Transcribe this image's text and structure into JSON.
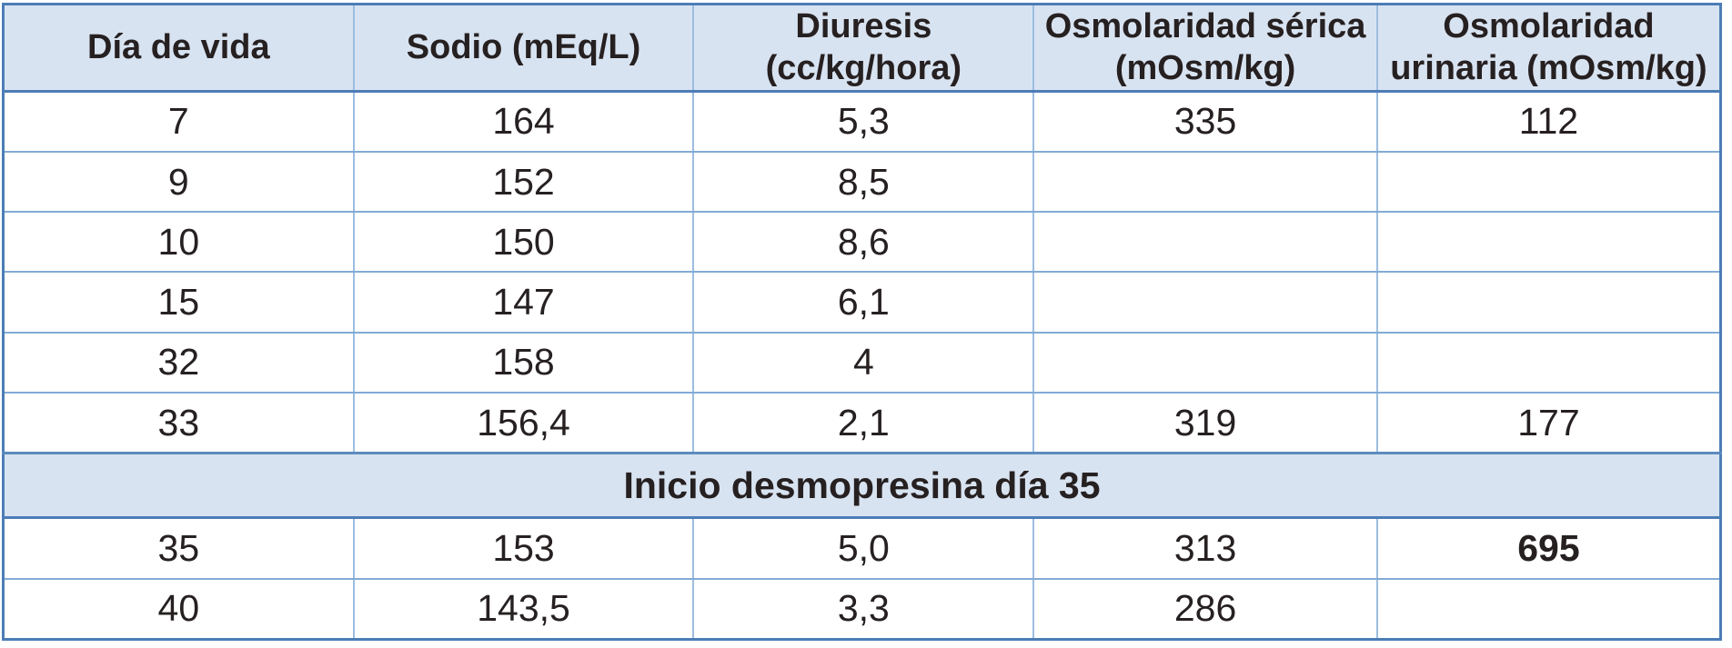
{
  "table": {
    "columns": [
      {
        "label": "Día de vida"
      },
      {
        "label": "Sodio (mEq/L)"
      },
      {
        "label": "Diuresis (cc/kg/hora)"
      },
      {
        "label": "Osmolaridad sérica (mOsm/kg)"
      },
      {
        "label": "Osmolaridad urinaria (mOsm/kg)"
      }
    ],
    "rows": [
      {
        "cells": [
          "7",
          "164",
          "5,3",
          "335",
          "112"
        ]
      },
      {
        "cells": [
          "9",
          "152",
          "8,5",
          "",
          ""
        ]
      },
      {
        "cells": [
          "10",
          "150",
          "8,6",
          "",
          ""
        ]
      },
      {
        "cells": [
          "15",
          "147",
          "6,1",
          "",
          ""
        ]
      },
      {
        "cells": [
          "32",
          "158",
          "4",
          "",
          ""
        ]
      },
      {
        "cells": [
          "33",
          "156,4",
          "2,1",
          "319",
          "177"
        ]
      }
    ],
    "section_divider": {
      "label": "Inicio desmopresina día 35"
    },
    "rows_after_divider": [
      {
        "cells": [
          "35",
          "153",
          "5,0",
          "313",
          "695"
        ],
        "bold_cell_index": 4
      },
      {
        "cells": [
          "40",
          "143,5",
          "3,3",
          "286",
          ""
        ]
      }
    ],
    "colors": {
      "header_background": "#d8e3f1",
      "outer_border": "#4c7db6",
      "grid_vertical": "#9cbde0",
      "grid_horizontal": "#82abd6",
      "text": "#262021"
    }
  }
}
